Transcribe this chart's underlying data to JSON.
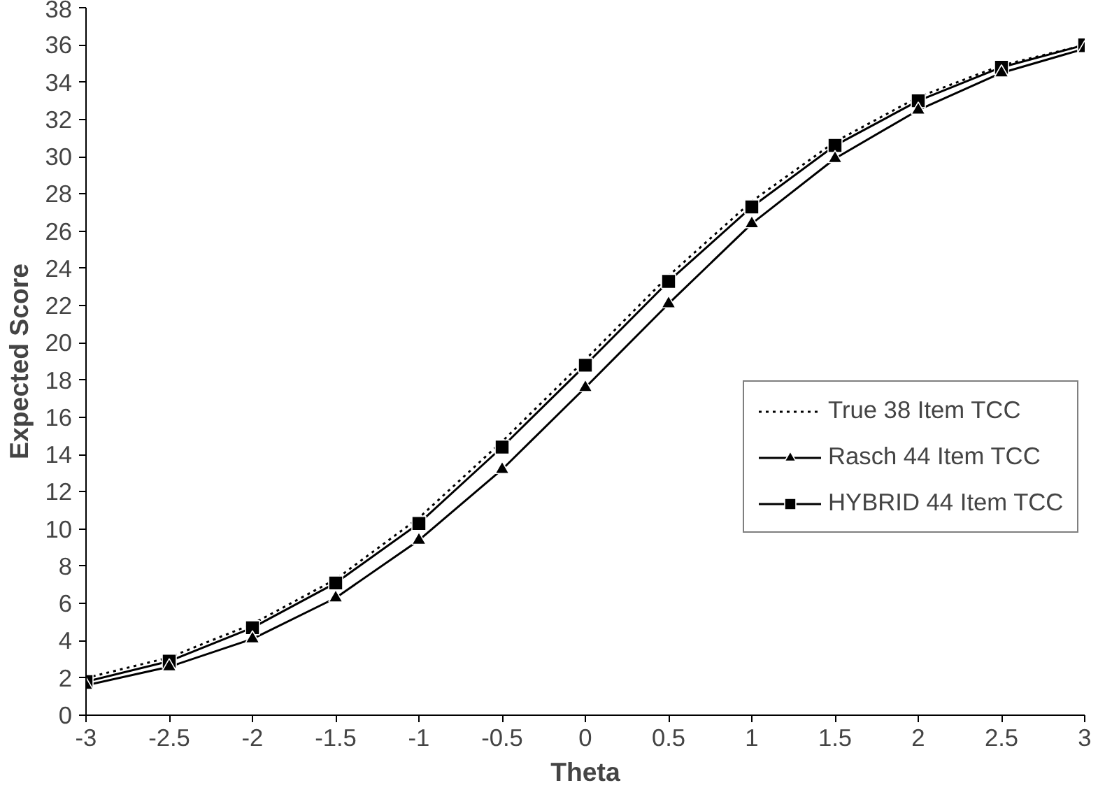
{
  "chart_data": {
    "type": "line",
    "xlabel": "Theta",
    "ylabel": "Expected Score",
    "x": [
      -3,
      -2.5,
      -2,
      -1.5,
      -1,
      -0.5,
      0,
      0.5,
      1,
      1.5,
      2,
      2.5,
      3
    ],
    "xlim": [
      -3,
      3
    ],
    "xticks": [
      -3,
      -2.5,
      -2,
      -1.5,
      -1,
      -0.5,
      0,
      0.5,
      1,
      1.5,
      2,
      2.5,
      3
    ],
    "ylim": [
      0,
      38
    ],
    "yticks": [
      0,
      2,
      4,
      6,
      8,
      10,
      12,
      14,
      16,
      18,
      20,
      22,
      24,
      26,
      28,
      30,
      32,
      34,
      36,
      38
    ],
    "grid": false,
    "legend": "right",
    "series": [
      {
        "name": "True 38 Item TCC",
        "color": "#000000",
        "marker": "none",
        "line_style": "dotted",
        "values": [
          2.0,
          3.1,
          4.9,
          7.3,
          10.6,
          14.7,
          19.1,
          23.6,
          27.6,
          30.8,
          33.2,
          34.9,
          36.0
        ]
      },
      {
        "name": "Rasch 44 Item TCC",
        "color": "#000000",
        "marker": "triangle",
        "line_style": "solid",
        "values": [
          1.6,
          2.6,
          4.1,
          6.3,
          9.4,
          13.2,
          17.6,
          22.1,
          26.4,
          29.9,
          32.5,
          34.5,
          35.8
        ]
      },
      {
        "name": "HYBRID 44 Item TCC",
        "color": "#000000",
        "marker": "square",
        "line_style": "solid",
        "values": [
          1.8,
          2.9,
          4.7,
          7.1,
          10.3,
          14.4,
          18.8,
          23.3,
          27.3,
          30.6,
          33.0,
          34.8,
          36.0
        ]
      }
    ]
  }
}
